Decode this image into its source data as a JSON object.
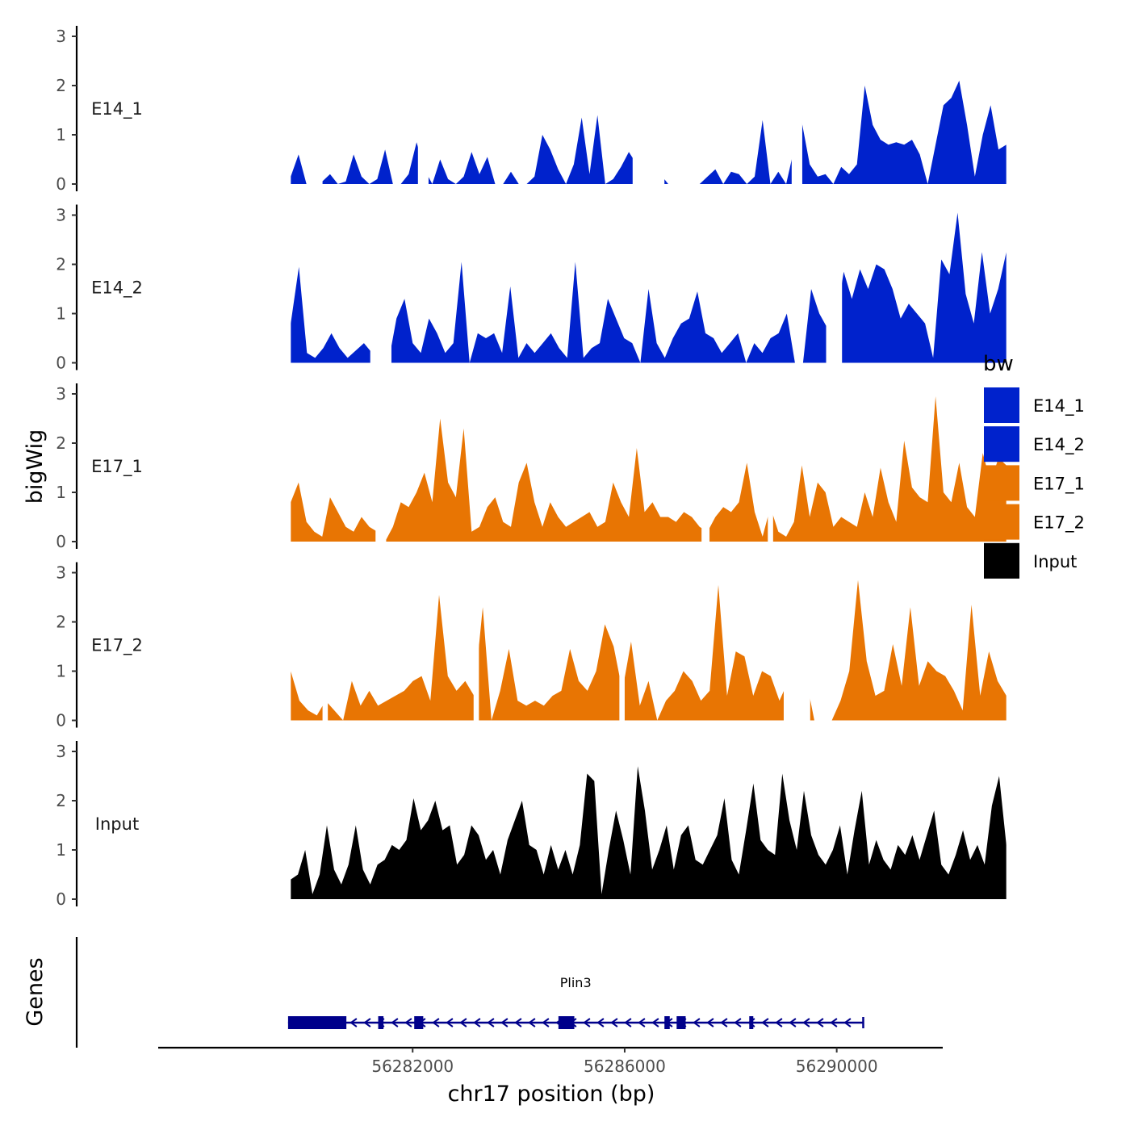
{
  "chart_data": {
    "type": "area",
    "ylabel": "bigWig",
    "xlabel": "chr17 position (bp)",
    "ylim": [
      0,
      3.1
    ],
    "y_ticks": [
      0,
      1,
      2,
      3
    ],
    "xlim": [
      56277200,
      56292000
    ],
    "x_ticks": [
      56282000,
      56286000,
      56290000
    ],
    "x_tick_labels": [
      "56282000",
      "56286000",
      "56290000"
    ],
    "track_range": [
      56279700,
      56293200
    ],
    "legend": {
      "title": "bw",
      "position": "right",
      "entries": [
        {
          "label": "E14_1",
          "color": "#0022CC"
        },
        {
          "label": "E14_2",
          "color": "#0022CC"
        },
        {
          "label": "E17_1",
          "color": "#E87503"
        },
        {
          "label": "E17_2",
          "color": "#E87503"
        },
        {
          "label": "Input",
          "color": "#000000"
        }
      ]
    },
    "tracks": [
      {
        "name": "E14_1",
        "color": "#0022CC",
        "values": [
          0.15,
          0.6,
          0,
          0,
          0.05,
          0.2,
          0,
          0.05,
          0.6,
          0.15,
          0,
          0.1,
          0.7,
          0,
          0,
          0.2,
          0.85,
          0.3,
          0,
          0.5,
          0.1,
          0,
          0.15,
          0.65,
          0.2,
          0.55,
          0,
          0,
          0.25,
          0,
          0,
          0.15,
          1.0,
          0.7,
          0.3,
          0,
          0.4,
          1.35,
          0.2,
          1.4,
          0,
          0.1,
          0.35,
          0.65,
          0.4,
          0.6,
          0.35,
          0.2,
          0,
          0,
          0,
          0,
          0,
          0.15,
          0.3,
          0,
          0.25,
          0.2,
          0,
          0.15,
          1.3,
          0,
          0.25,
          0,
          0.7,
          1.25,
          0.4,
          0.15,
          0.2,
          0,
          0.35,
          0.2,
          0.4,
          2.0,
          1.2,
          0.9,
          0.8,
          0.85,
          0.8,
          0.9,
          0.6,
          0,
          0.8,
          1.6,
          1.75,
          2.1,
          1.2,
          0.15,
          1.0,
          1.6,
          0.7,
          0.8
        ],
        "gaps": [
          [
            56280100,
            56280300
          ],
          [
            56282100,
            56282300
          ],
          [
            56286150,
            56286750
          ],
          [
            56289150,
            56289350
          ]
        ]
      },
      {
        "name": "E14_2",
        "color": "#0022CC",
        "values": [
          0.8,
          1.95,
          0.2,
          0.1,
          0.3,
          0.6,
          0.3,
          0.1,
          0.25,
          0.4,
          0.2,
          0,
          0,
          0.9,
          1.3,
          0.4,
          0.2,
          0.9,
          0.6,
          0.2,
          0.4,
          2.05,
          0,
          0.6,
          0.5,
          0.6,
          0.2,
          1.55,
          0.1,
          0.4,
          0.2,
          0.4,
          0.6,
          0.3,
          0.1,
          2.05,
          0.1,
          0.3,
          0.4,
          1.3,
          0.9,
          0.5,
          0.4,
          0,
          1.5,
          0.4,
          0.1,
          0.5,
          0.8,
          0.9,
          1.45,
          0.6,
          0.5,
          0.2,
          0.4,
          0.6,
          0,
          0.4,
          0.2,
          0.5,
          0.6,
          1.0,
          0,
          0,
          1.5,
          1.0,
          0.7,
          0.8,
          1.85,
          1.3,
          1.9,
          1.5,
          2.0,
          1.9,
          1.5,
          0.9,
          1.2,
          1.0,
          0.8,
          0.1,
          2.1,
          1.8,
          3.05,
          1.4,
          0.8,
          2.25,
          1.0,
          1.5,
          2.25
        ],
        "gaps": [
          [
            56281200,
            56281600
          ],
          [
            56289800,
            56290100
          ]
        ]
      },
      {
        "name": "E17_1",
        "color": "#E87503",
        "values": [
          0.8,
          1.2,
          0.4,
          0.2,
          0.1,
          0.9,
          0.6,
          0.3,
          0.2,
          0.5,
          0.3,
          0.2,
          0,
          0.3,
          0.8,
          0.7,
          1.0,
          1.4,
          0.8,
          2.5,
          1.2,
          0.9,
          2.3,
          0.2,
          0.3,
          0.7,
          0.9,
          0.4,
          0.3,
          1.2,
          1.6,
          0.8,
          0.3,
          0.8,
          0.5,
          0.3,
          0.4,
          0.5,
          0.6,
          0.3,
          0.4,
          1.2,
          0.8,
          0.5,
          1.9,
          0.6,
          0.8,
          0.5,
          0.5,
          0.4,
          0.6,
          0.5,
          0.3,
          0.2,
          0.5,
          0.7,
          0.6,
          0.8,
          1.6,
          0.6,
          0.1,
          0.7,
          0.2,
          0.1,
          0.4,
          1.55,
          0.5,
          1.2,
          1.0,
          0.3,
          0.5,
          0.4,
          0.3,
          1.0,
          0.5,
          1.5,
          0.8,
          0.4,
          2.05,
          1.1,
          0.9,
          0.8,
          2.95,
          1.0,
          0.8,
          1.6,
          0.7,
          0.5,
          1.8,
          1.2,
          1.7,
          1.55
        ],
        "gaps": [
          [
            56281300,
            56281500
          ],
          [
            56287450,
            56287600
          ],
          [
            56288700,
            56288800
          ]
        ]
      },
      {
        "name": "E17_2",
        "color": "#E87503",
        "values": [
          1.0,
          0.4,
          0.2,
          0.1,
          0.4,
          0.2,
          0,
          0.8,
          0.3,
          0.6,
          0.3,
          0.4,
          0.5,
          0.6,
          0.8,
          0.9,
          0.4,
          2.55,
          0.9,
          0.6,
          0.8,
          0.5,
          2.3,
          0,
          0.6,
          1.45,
          0.4,
          0.3,
          0.4,
          0.3,
          0.5,
          0.6,
          1.45,
          0.8,
          0.6,
          1.0,
          1.95,
          1.5,
          0.6,
          1.6,
          0.3,
          0.8,
          0,
          0.4,
          0.6,
          1.0,
          0.8,
          0.4,
          0.6,
          2.75,
          0.5,
          1.4,
          1.3,
          0.5,
          1.0,
          0.9,
          0.4,
          0.8,
          0.5,
          0.9,
          0,
          0,
          0,
          0.4,
          1.0,
          2.85,
          1.2,
          0.5,
          0.6,
          1.55,
          0.7,
          2.3,
          0.7,
          1.2,
          1.0,
          0.9,
          0.6,
          0.2,
          2.35,
          0.5,
          1.4,
          0.8,
          0.5
        ],
        "gaps": [
          [
            56280300,
            56280400
          ],
          [
            56283150,
            56283250
          ],
          [
            56285900,
            56286000
          ],
          [
            56289000,
            56289500
          ]
        ]
      },
      {
        "name": "Input",
        "color": "#000000",
        "values": [
          0.4,
          0.5,
          1.0,
          0.1,
          0.5,
          1.5,
          0.6,
          0.3,
          0.7,
          1.5,
          0.6,
          0.3,
          0.7,
          0.8,
          1.1,
          1.0,
          1.2,
          2.05,
          1.4,
          1.6,
          2.0,
          1.4,
          1.5,
          0.7,
          0.9,
          1.5,
          1.3,
          0.8,
          1.0,
          0.5,
          1.2,
          1.6,
          2.0,
          1.1,
          1.0,
          0.5,
          1.1,
          0.6,
          1.0,
          0.5,
          1.1,
          2.55,
          2.4,
          0.1,
          1.0,
          1.8,
          1.2,
          0.5,
          2.7,
          1.8,
          0.6,
          1.0,
          1.5,
          0.6,
          1.3,
          1.5,
          0.8,
          0.7,
          1.0,
          1.3,
          2.05,
          0.8,
          0.5,
          1.4,
          2.35,
          1.2,
          1.0,
          0.9,
          2.55,
          1.6,
          1.0,
          2.2,
          1.3,
          0.9,
          0.7,
          1.0,
          1.5,
          0.5,
          1.4,
          2.2,
          0.7,
          1.2,
          0.8,
          0.6,
          1.1,
          0.9,
          1.3,
          0.8,
          1.3,
          1.8,
          0.7,
          0.5,
          0.9,
          1.4,
          0.8,
          1.1,
          0.7,
          1.9,
          2.5,
          1.1
        ]
      }
    ],
    "gene_track": {
      "label": "Genes",
      "gene_name": "Plin3",
      "strand": "-",
      "color": "#00008B",
      "start": 56279650,
      "end": 56290500,
      "exons": [
        [
          56279650,
          56280750
        ],
        [
          56281350,
          56281450
        ],
        [
          56282030,
          56282200
        ],
        [
          56284750,
          56285050
        ],
        [
          56286750,
          56286850
        ],
        [
          56286980,
          56287150
        ],
        [
          56288350,
          56288420
        ]
      ]
    }
  }
}
